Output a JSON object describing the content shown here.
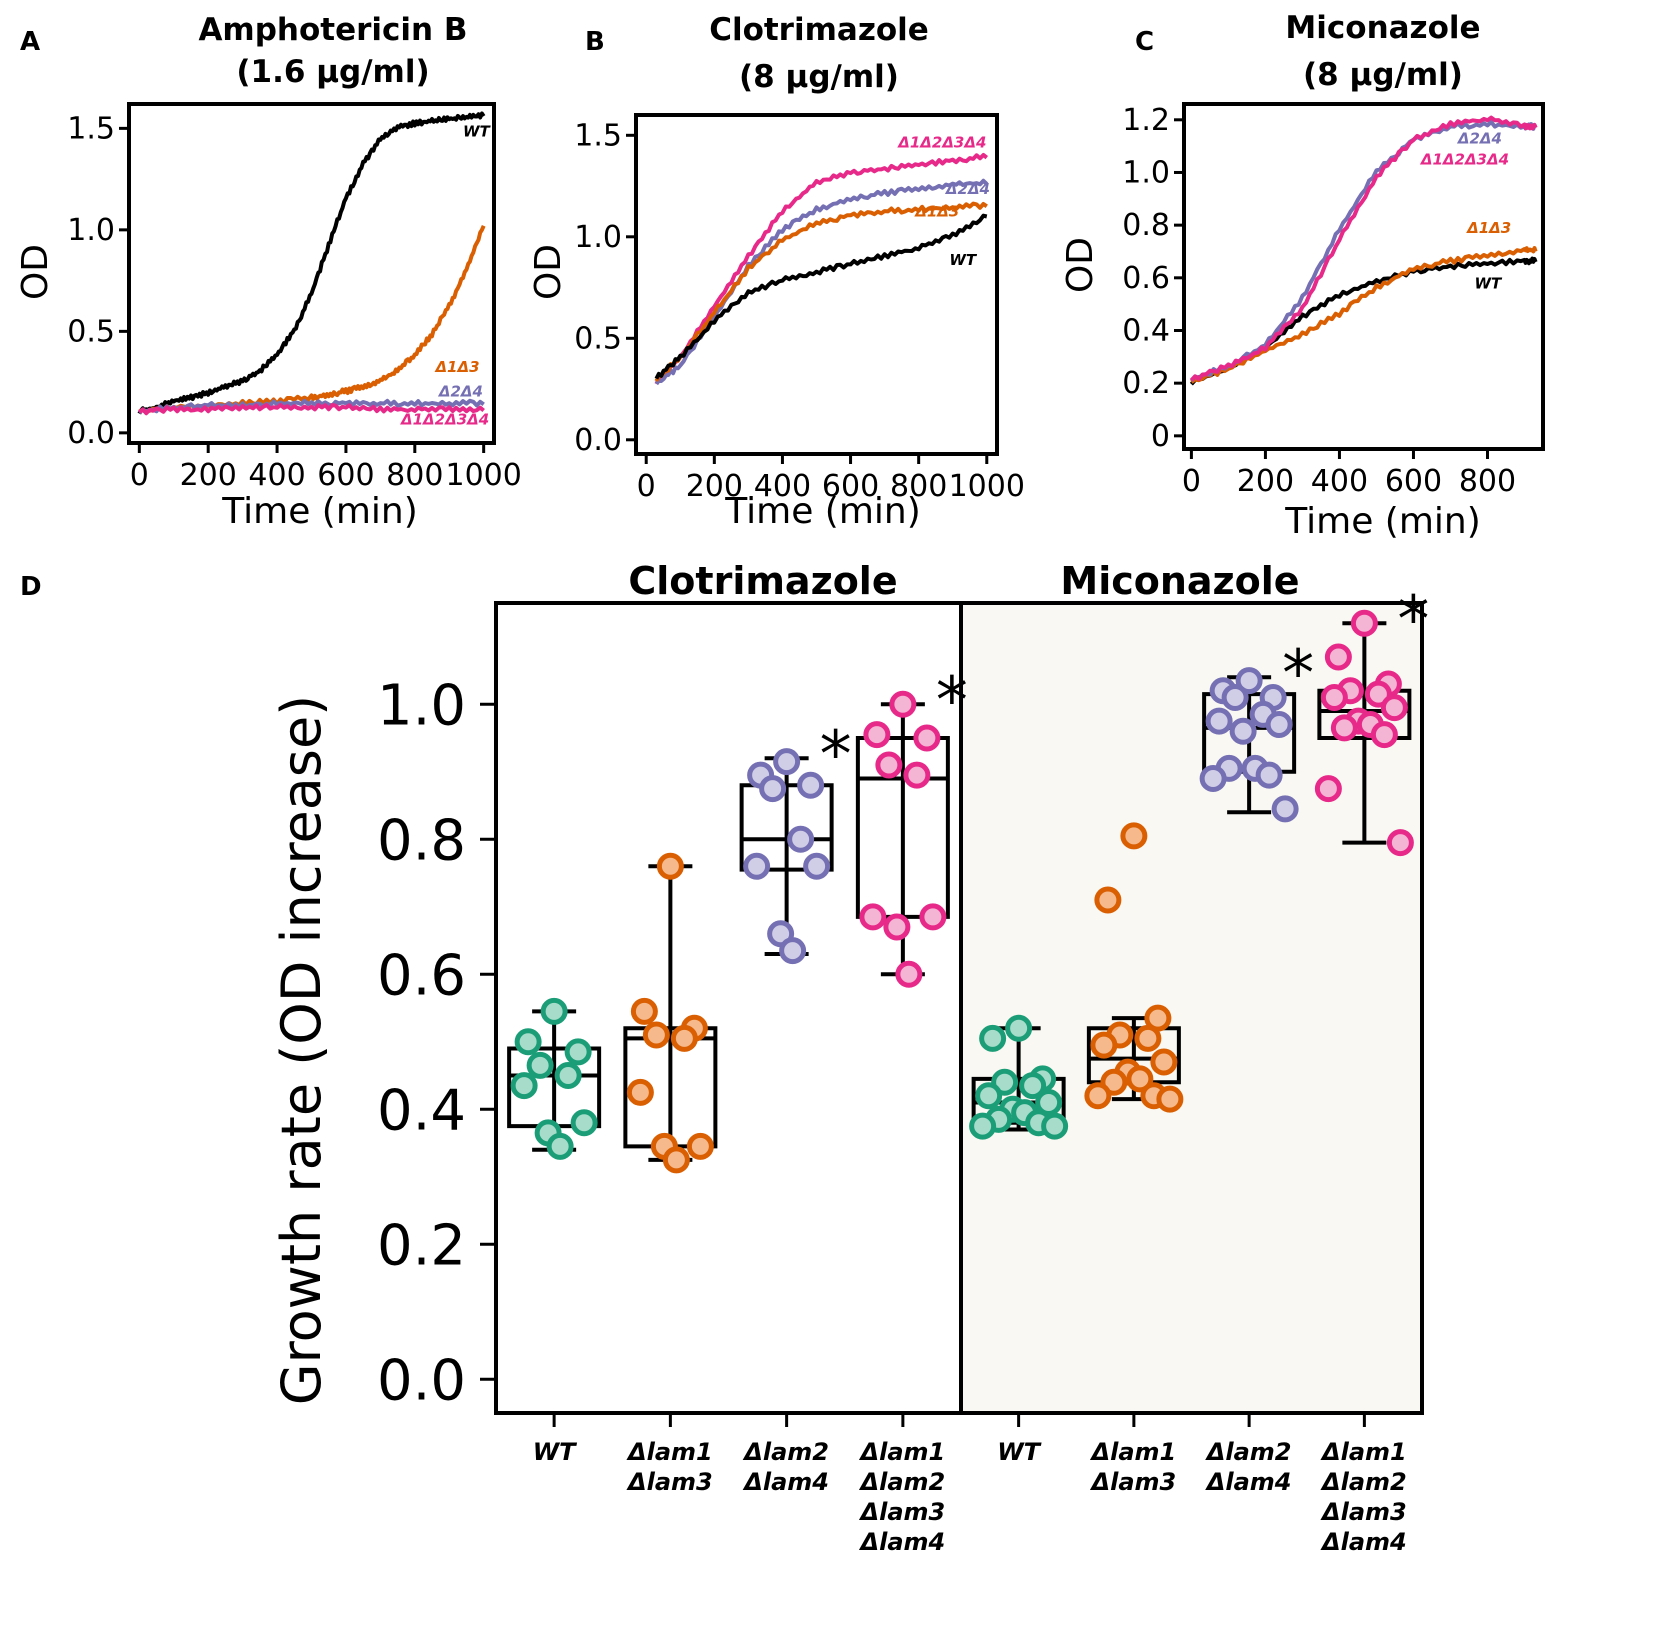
{
  "colors": {
    "WT": "#000000",
    "D1D3": "#d95f02",
    "D2D4": "#7570b3",
    "D1D2D3D4": "#e7298a",
    "WT_point": "#1b9e77",
    "miconazole_facet_bg": "#f9f8f2"
  },
  "chart_data": [
    {
      "panel": "A",
      "type": "line",
      "title_line1": "Amphotericin B",
      "title_line2": "(1.6 µg/ml)",
      "xlabel": "Time (min)",
      "ylabel": "OD",
      "xlim": [
        -30,
        1030
      ],
      "ylim": [
        -0.05,
        1.62
      ],
      "xticks": [
        0,
        200,
        400,
        600,
        800,
        1000
      ],
      "yticks": [
        0.0,
        0.5,
        1.0,
        1.5
      ],
      "ytick_labels": [
        "0.0",
        "0.5",
        "1.0",
        "1.5"
      ],
      "series": [
        {
          "key": "WT",
          "name": "WT",
          "x": [
            0,
            50,
            100,
            150,
            200,
            250,
            300,
            350,
            400,
            450,
            500,
            550,
            600,
            650,
            700,
            750,
            800,
            850,
            900,
            950,
            1000
          ],
          "values": [
            0.1,
            0.12,
            0.15,
            0.17,
            0.19,
            0.22,
            0.25,
            0.3,
            0.38,
            0.5,
            0.68,
            0.92,
            1.15,
            1.32,
            1.44,
            1.5,
            1.52,
            1.53,
            1.54,
            1.55,
            1.56
          ]
        },
        {
          "key": "D1D3",
          "name": "Δ1Δ3",
          "x": [
            0,
            100,
            200,
            300,
            400,
            500,
            550,
            600,
            650,
            700,
            750,
            800,
            850,
            900,
            950,
            1000
          ],
          "values": [
            0.1,
            0.12,
            0.13,
            0.14,
            0.15,
            0.17,
            0.18,
            0.2,
            0.22,
            0.25,
            0.3,
            0.38,
            0.48,
            0.62,
            0.8,
            1.02
          ]
        },
        {
          "key": "D2D4",
          "name": "Δ2Δ4",
          "x": [
            0,
            100,
            200,
            300,
            400,
            500,
            600,
            700,
            800,
            900,
            1000
          ],
          "values": [
            0.1,
            0.12,
            0.13,
            0.13,
            0.14,
            0.14,
            0.14,
            0.14,
            0.14,
            0.14,
            0.14
          ]
        },
        {
          "key": "D1D2D3D4",
          "name": "Δ1Δ2Δ3Δ4",
          "x": [
            0,
            100,
            200,
            300,
            400,
            500,
            600,
            700,
            800,
            900,
            1000
          ],
          "values": [
            0.1,
            0.11,
            0.11,
            0.12,
            0.12,
            0.12,
            0.12,
            0.11,
            0.11,
            0.11,
            0.11
          ]
        }
      ],
      "label_data_pos": {
        "WT": [
          940,
          1.46
        ],
        "D1D3": [
          860,
          0.3
        ],
        "D2D4": [
          870,
          0.18
        ],
        "D1D2D3D4": [
          760,
          0.04
        ]
      }
    },
    {
      "panel": "B",
      "type": "line",
      "title_line1": "Clotrimazole",
      "title_line2": "(8 µg/ml)",
      "xlabel": "Time (min)",
      "ylabel": "OD",
      "xlim": [
        -30,
        1030
      ],
      "ylim": [
        -0.07,
        1.6
      ],
      "xticks": [
        0,
        200,
        400,
        600,
        800,
        1000
      ],
      "yticks": [
        0.0,
        0.5,
        1.0,
        1.5
      ],
      "ytick_labels": [
        "0.0",
        "0.5",
        "1.0",
        "1.5"
      ],
      "series": [
        {
          "key": "D1D2D3D4",
          "name": "Δ1Δ2Δ3Δ4",
          "x": [
            30,
            100,
            200,
            300,
            400,
            500,
            600,
            700,
            800,
            900,
            1000
          ],
          "values": [
            0.28,
            0.4,
            0.65,
            0.9,
            1.12,
            1.26,
            1.31,
            1.33,
            1.35,
            1.37,
            1.39
          ]
        },
        {
          "key": "D2D4",
          "name": "Δ2Δ4",
          "x": [
            30,
            100,
            200,
            300,
            400,
            500,
            600,
            700,
            800,
            900,
            1000
          ],
          "values": [
            0.27,
            0.36,
            0.6,
            0.85,
            1.03,
            1.13,
            1.18,
            1.21,
            1.23,
            1.25,
            1.26
          ]
        },
        {
          "key": "D1D3",
          "name": "Δ1Δ3",
          "x": [
            30,
            100,
            200,
            300,
            400,
            500,
            600,
            700,
            800,
            900,
            1000
          ],
          "values": [
            0.29,
            0.4,
            0.62,
            0.84,
            0.98,
            1.06,
            1.1,
            1.12,
            1.13,
            1.14,
            1.15
          ]
        },
        {
          "key": "WT",
          "name": "WT",
          "x": [
            30,
            100,
            200,
            300,
            400,
            500,
            600,
            700,
            800,
            900,
            1000
          ],
          "values": [
            0.3,
            0.4,
            0.58,
            0.72,
            0.78,
            0.82,
            0.86,
            0.9,
            0.94,
            1.0,
            1.1
          ]
        }
      ],
      "label_data_pos": {
        "D1D2D3D4": [
          740,
          1.44
        ],
        "D2D4": [
          880,
          1.21
        ],
        "D1D3": [
          790,
          1.1
        ],
        "WT": [
          890,
          0.86
        ]
      }
    },
    {
      "panel": "C",
      "type": "line",
      "title_line1": "Miconazole",
      "title_line2": "(8 µg/ml)",
      "xlabel": "Time (min)",
      "ylabel": "OD",
      "xlim": [
        -20,
        950
      ],
      "ylim": [
        -0.05,
        1.26
      ],
      "xticks": [
        0,
        200,
        400,
        600,
        800
      ],
      "yticks": [
        0,
        0.2,
        0.4,
        0.6,
        0.8,
        1.0,
        1.2
      ],
      "ytick_labels": [
        "0",
        "0.2",
        "0.4",
        "0.6",
        "0.8",
        "1.0",
        "1.2"
      ],
      "series": [
        {
          "key": "WT",
          "name": "WT",
          "x": [
            0,
            100,
            200,
            300,
            400,
            500,
            600,
            700,
            800,
            900,
            930
          ],
          "values": [
            0.2,
            0.25,
            0.33,
            0.45,
            0.53,
            0.58,
            0.62,
            0.64,
            0.65,
            0.66,
            0.66
          ]
        },
        {
          "key": "D1D3",
          "name": "Δ1Δ3",
          "x": [
            0,
            100,
            200,
            300,
            400,
            500,
            600,
            700,
            800,
            900,
            930
          ],
          "values": [
            0.2,
            0.25,
            0.32,
            0.38,
            0.46,
            0.56,
            0.63,
            0.66,
            0.68,
            0.7,
            0.7
          ]
        },
        {
          "key": "D2D4",
          "name": "Δ2Δ4",
          "x": [
            0,
            100,
            200,
            300,
            400,
            500,
            600,
            700,
            800,
            900,
            930
          ],
          "values": [
            0.21,
            0.26,
            0.34,
            0.52,
            0.78,
            1.0,
            1.12,
            1.17,
            1.18,
            1.17,
            1.17
          ]
        },
        {
          "key": "D1D2D3D4",
          "name": "Δ1Δ2Δ3Δ4",
          "x": [
            0,
            100,
            200,
            300,
            400,
            500,
            600,
            700,
            800,
            900,
            930
          ],
          "values": [
            0.21,
            0.26,
            0.33,
            0.48,
            0.74,
            0.98,
            1.12,
            1.18,
            1.2,
            1.17,
            1.17
          ]
        }
      ],
      "label_data_pos": {
        "D2D4": [
          720,
          1.11
        ],
        "D1D2D3D4": [
          620,
          1.03
        ],
        "D1D3": [
          745,
          0.77
        ],
        "WT": [
          765,
          0.56
        ]
      }
    },
    {
      "panel": "D",
      "type": "box",
      "ylabel": "Growth rate (OD increase)",
      "ylim": [
        -0.05,
        1.15
      ],
      "yticks": [
        0.0,
        0.2,
        0.4,
        0.6,
        0.8,
        1.0
      ],
      "ytick_labels": [
        "0.0",
        "0.2",
        "0.4",
        "0.6",
        "0.8",
        "1.0"
      ],
      "facets": [
        {
          "name": "Clotrimazole",
          "groups": [
            {
              "key": "WT",
              "label_lines": [
                "WT"
              ],
              "points": [
                0.545,
                0.5,
                0.485,
                0.465,
                0.45,
                0.435,
                0.38,
                0.365,
                0.345
              ],
              "box": {
                "lower_whisker": 0.34,
                "q1": 0.375,
                "median": 0.45,
                "q3": 0.49,
                "upper_whisker": 0.545
              },
              "significant": false
            },
            {
              "key": "D1D3",
              "label_lines": [
                "Δlam1",
                "Δlam3"
              ],
              "points": [
                0.76,
                0.545,
                0.52,
                0.51,
                0.505,
                0.425,
                0.345,
                0.345,
                0.325
              ],
              "box": {
                "lower_whisker": 0.325,
                "q1": 0.345,
                "median": 0.505,
                "q3": 0.52,
                "upper_whisker": 0.76
              },
              "significant": false
            },
            {
              "key": "D2D4",
              "label_lines": [
                "Δlam2",
                "Δlam4"
              ],
              "points": [
                0.915,
                0.895,
                0.88,
                0.875,
                0.8,
                0.76,
                0.76,
                0.66,
                0.635
              ],
              "box": {
                "lower_whisker": 0.63,
                "q1": 0.755,
                "median": 0.8,
                "q3": 0.88,
                "upper_whisker": 0.92
              },
              "significant": true
            },
            {
              "key": "D1D2D3D4",
              "label_lines": [
                "Δlam1",
                "Δlam2",
                "Δlam3",
                "Δlam4"
              ],
              "points": [
                1.0,
                0.955,
                0.95,
                0.91,
                0.895,
                0.685,
                0.685,
                0.67,
                0.6
              ],
              "box": {
                "lower_whisker": 0.6,
                "q1": 0.685,
                "median": 0.89,
                "q3": 0.95,
                "upper_whisker": 1.0
              },
              "significant": true
            }
          ]
        },
        {
          "name": "Miconazole",
          "groups": [
            {
              "key": "WT",
              "label_lines": [
                "WT"
              ],
              "points": [
                0.52,
                0.505,
                0.445,
                0.44,
                0.435,
                0.42,
                0.41,
                0.4,
                0.395,
                0.385,
                0.38,
                0.375,
                0.375
              ],
              "box": {
                "lower_whisker": 0.37,
                "q1": 0.38,
                "median": 0.41,
                "q3": 0.445,
                "upper_whisker": 0.52
              },
              "significant": false
            },
            {
              "key": "D1D3",
              "label_lines": [
                "Δlam1",
                "Δlam3"
              ],
              "points": [
                0.805,
                0.71,
                0.535,
                0.51,
                0.505,
                0.495,
                0.47,
                0.455,
                0.445,
                0.44,
                0.42,
                0.42,
                0.415
              ],
              "box": {
                "lower_whisker": 0.415,
                "q1": 0.44,
                "median": 0.475,
                "q3": 0.52,
                "upper_whisker": 0.535
              },
              "significant": false
            },
            {
              "key": "D2D4",
              "label_lines": [
                "Δlam2",
                "Δlam4"
              ],
              "points": [
                1.035,
                1.02,
                1.01,
                1.01,
                0.985,
                0.975,
                0.97,
                0.96,
                0.905,
                0.905,
                0.895,
                0.89,
                0.845
              ],
              "box": {
                "lower_whisker": 0.84,
                "q1": 0.9,
                "median": 0.965,
                "q3": 1.015,
                "upper_whisker": 1.04
              },
              "significant": true
            },
            {
              "key": "D1D2D3D4",
              "label_lines": [
                "Δlam1",
                "Δlam2",
                "Δlam3",
                "Δlam4"
              ],
              "points": [
                1.12,
                1.07,
                1.03,
                1.02,
                1.015,
                1.01,
                0.995,
                0.975,
                0.97,
                0.965,
                0.955,
                0.875,
                0.795
              ],
              "box": {
                "lower_whisker": 0.795,
                "q1": 0.95,
                "median": 0.99,
                "q3": 1.02,
                "upper_whisker": 1.12
              },
              "significant": true
            }
          ]
        }
      ],
      "significance_marker": "*"
    }
  ]
}
